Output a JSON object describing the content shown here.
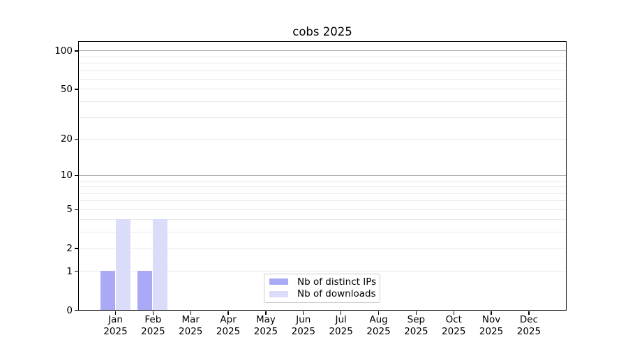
{
  "figure": {
    "background": "#ffffff"
  },
  "chart_data": {
    "type": "bar",
    "title": "cobs 2025",
    "categories": [
      {
        "m": "Jan",
        "y": "2025"
      },
      {
        "m": "Feb",
        "y": "2025"
      },
      {
        "m": "Mar",
        "y": "2025"
      },
      {
        "m": "Apr",
        "y": "2025"
      },
      {
        "m": "May",
        "y": "2025"
      },
      {
        "m": "Jun",
        "y": "2025"
      },
      {
        "m": "Jul",
        "y": "2025"
      },
      {
        "m": "Aug",
        "y": "2025"
      },
      {
        "m": "Sep",
        "y": "2025"
      },
      {
        "m": "Oct",
        "y": "2025"
      },
      {
        "m": "Nov",
        "y": "2025"
      },
      {
        "m": "Dec",
        "y": "2025"
      }
    ],
    "series": [
      {
        "name": "Nb of distinct IPs",
        "color": "#a9a9f5",
        "values": [
          1,
          1,
          0,
          0,
          0,
          0,
          0,
          0,
          0,
          0,
          0,
          0
        ]
      },
      {
        "name": "Nb of downloads",
        "color": "#dbdbfa",
        "values": [
          4,
          4,
          0,
          0,
          0,
          0,
          0,
          0,
          0,
          0,
          0,
          0
        ]
      }
    ],
    "xlabel": "",
    "ylabel": "",
    "yscale": "log1p",
    "ylim": [
      0,
      115
    ],
    "yticks": [
      0,
      1,
      2,
      5,
      10,
      20,
      50,
      100
    ],
    "major_gridlines": [
      10,
      100
    ],
    "minor_gridlines": [
      1,
      2,
      3,
      4,
      5,
      6,
      7,
      8,
      9,
      20,
      30,
      40,
      50,
      60,
      70,
      80,
      90
    ],
    "grid": "on",
    "legend": {
      "position": "lower center",
      "entries": [
        "Nb of distinct IPs",
        "Nb of downloads"
      ]
    },
    "colors": {
      "major_grid": "#b0b0b0",
      "minor_grid": "#eaeaea",
      "spine": "#000000",
      "text": "#000000",
      "legend_border": "#cccccc"
    }
  }
}
